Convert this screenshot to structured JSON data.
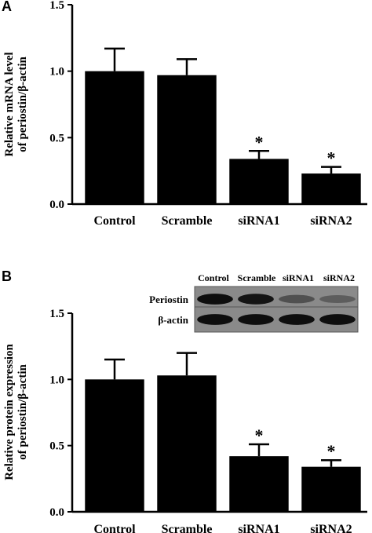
{
  "chart_data": [
    {
      "panel": "A",
      "type": "bar",
      "categories": [
        "Control",
        "Scramble",
        "siRNA1",
        "siRNA2"
      ],
      "values": [
        1.0,
        0.97,
        0.34,
        0.23
      ],
      "errors": [
        0.17,
        0.12,
        0.06,
        0.05
      ],
      "significance": [
        "",
        "",
        "*",
        "*"
      ],
      "ylabel_lines": [
        "Relative mRNA level",
        "of periostin/β-actin"
      ],
      "ylim": [
        0.0,
        1.5
      ],
      "yticks": [
        "0.0",
        "0.5",
        "1.0",
        "1.5"
      ],
      "ytick_values": [
        0.0,
        0.5,
        1.0,
        1.5
      ],
      "bar_color": "#000000",
      "grid": false
    },
    {
      "panel": "B",
      "type": "bar",
      "categories": [
        "Control",
        "Scramble",
        "siRNA1",
        "siRNA2"
      ],
      "values": [
        1.0,
        1.03,
        0.42,
        0.34
      ],
      "errors": [
        0.15,
        0.17,
        0.09,
        0.05
      ],
      "significance": [
        "",
        "",
        "*",
        "*"
      ],
      "ylabel_lines": [
        "Relative protein expression",
        "of periostin/β-actin"
      ],
      "ylim": [
        0.0,
        1.5
      ],
      "yticks": [
        "0.0",
        "0.5",
        "1.0",
        "1.5"
      ],
      "ytick_values": [
        0.0,
        0.5,
        1.0,
        1.5
      ],
      "bar_color": "#000000",
      "grid": false
    }
  ],
  "blot": {
    "lanes": [
      "Control",
      "Scramble",
      "siRNA1",
      "siRNA2"
    ],
    "rows": [
      {
        "label": "Periostin",
        "intensity": [
          0.95,
          0.9,
          0.45,
          0.35
        ]
      },
      {
        "label": "β-actin",
        "intensity": [
          0.95,
          0.95,
          0.95,
          0.95
        ]
      }
    ]
  }
}
